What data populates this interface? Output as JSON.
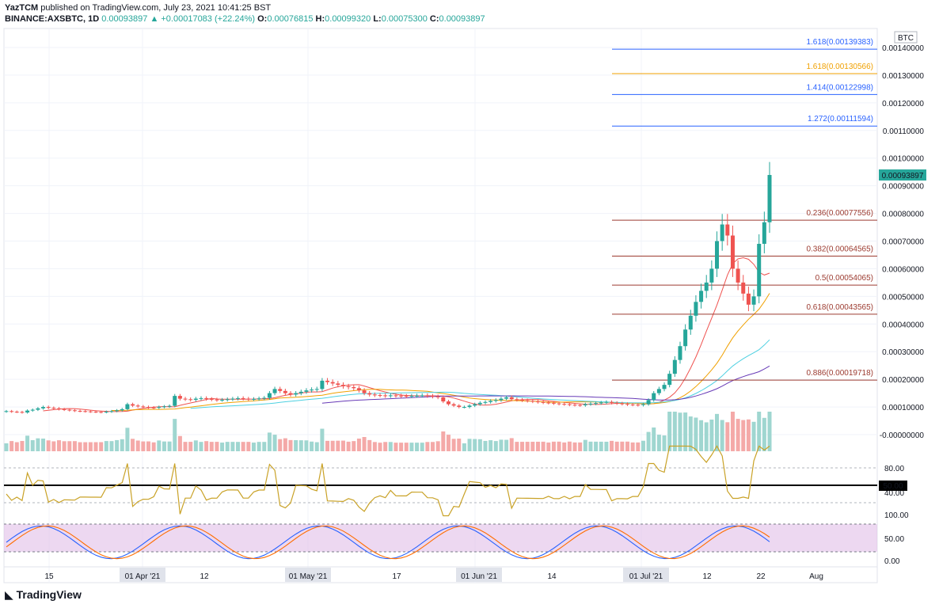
{
  "header": {
    "publisher": "YazTCM",
    "published_text": "published on TradingView.com, July 23, 2021 10:41:25 BST",
    "symbol": "BINANCE:AXSBTC, 1D",
    "last": "0.00093897",
    "change": "▲ +0.00017083 (+22.24%)",
    "o_label": "O:",
    "o": "0.00076815",
    "h_label": "H:",
    "h": "0.00099320",
    "l_label": "L:",
    "l": "0.00075300",
    "c_label": "C:",
    "c": "0.00093897"
  },
  "brand": "TradingView",
  "colors": {
    "up": "#26a69a",
    "down": "#ef5350",
    "fib": "#9c3b30",
    "accent": "#2962ff"
  },
  "chart_data": {
    "type": "candlestick",
    "currency_label": "BTC",
    "price_ylim": [
      -1e-05,
      0.00145
    ],
    "price_ticks": [
      "0.00140000",
      "0.00130000",
      "0.00120000",
      "0.00110000",
      "0.00100000",
      "0.00090000",
      "0.00080000",
      "0.00070000",
      "0.00060000",
      "0.00050000",
      "0.00040000",
      "0.00030000",
      "0.00020000",
      "0.00010000",
      "-0.00000000"
    ],
    "price_tick_values": [
      0.0014,
      0.0013,
      0.0012,
      0.0011,
      0.001,
      0.0009,
      0.0008,
      0.0007,
      0.0006,
      0.0005,
      0.0004,
      0.0003,
      0.0002,
      0.0001,
      0
    ],
    "last_price_label": "0.00093897",
    "last_price_value": 0.00093897,
    "x_labels": [
      "15",
      "01 Apr '21",
      "12",
      "01 May '21",
      "17",
      "01 Jun '21",
      "14",
      "01 Jul '21",
      "12",
      "22",
      "Aug"
    ],
    "fib_levels": [
      {
        "label": "1.618(0.00139383)",
        "value": 0.00139383,
        "color": "#2962ff"
      },
      {
        "label": "1.618(0.00130566)",
        "value": 0.00130566,
        "color": "#f0a000"
      },
      {
        "label": "1.414(0.00122998)",
        "value": 0.00122998,
        "color": "#2962ff"
      },
      {
        "label": "1.272(0.00111594)",
        "value": 0.00111594,
        "color": "#2962ff"
      },
      {
        "label": "0.236(0.00077556)",
        "value": 0.00077556,
        "color": "#9c3b30"
      },
      {
        "label": "0.382(0.00064565)",
        "value": 0.00064565,
        "color": "#9c3b30"
      },
      {
        "label": "0.5(0.00054065)",
        "value": 0.00054065,
        "color": "#9c3b30"
      },
      {
        "label": "0.618(0.00043565)",
        "value": 0.00043565,
        "color": "#9c3b30"
      },
      {
        "label": "0.886(0.00019718)",
        "value": 0.00019718,
        "color": "#9c3b30"
      }
    ],
    "closes": [
      8.5e-05,
      8.3e-05,
      8.2e-05,
      8e-05,
      8.7e-05,
      9e-05,
      9.5e-05,
      0.0001,
      9.7e-05,
      9.5e-05,
      9.2e-05,
      9e-05,
      8.8e-05,
      8.6e-05,
      8.5e-05,
      8.4e-05,
      8.3e-05,
      8.2e-05,
      8.1e-05,
      8.3e-05,
      8.5e-05,
      8.8e-05,
      9.2e-05,
      0.00011,
      0.000105,
      0.000102,
      0.0001,
      9.8e-05,
      9.7e-05,
      0.0001,
      0.000102,
      0.000104,
      0.00014,
      0.00013,
      0.000128,
      0.000126,
      0.00013,
      0.000132,
      0.000129,
      0.000127,
      0.000125,
      0.000126,
      0.000128,
      0.00013,
      0.000132,
      0.00013,
      0.000128,
      0.000129,
      0.000131,
      0.000133,
      0.00015,
      0.000165,
      0.000158,
      0.00015,
      0.000145,
      0.00015,
      0.000155,
      0.00016,
      0.000163,
      0.000165,
      0.000195,
      0.00019,
      0.000185,
      0.00018,
      0.000175,
      0.000172,
      0.000168,
      0.00016,
      0.00015,
      0.000145,
      0.000143,
      0.000142,
      0.00014,
      0.000142,
      0.000141,
      0.00014,
      0.000139,
      0.00014,
      0.000141,
      0.000142,
      0.00014,
      0.000138,
      0.000135,
      0.00012,
      0.00011,
      0.000105,
      0.0001,
      0.0001,
      0.000105,
      0.00011,
      0.000115,
      0.000118,
      0.000122,
      0.000125,
      0.00013,
      0.000135,
      0.000128,
      0.000126,
      0.000124,
      0.000122,
      0.00012,
      0.000118,
      0.000116,
      0.000115,
      0.000113,
      0.000111,
      0.00011,
      0.000108,
      0.000107,
      0.000106,
      0.00011,
      0.000112,
      0.000114,
      0.000116,
      0.000118,
      0.000115,
      0.000113,
      0.000111,
      0.000109,
      0.000108,
      0.000107,
      0.00011,
      0.000125,
      0.00015,
      0.000165,
      0.00018,
      0.00022,
      0.00027,
      0.00032,
      0.00038,
      0.00043,
      0.00048,
      0.00052,
      0.00055,
      0.0006,
      0.0007,
      0.00076,
      0.00072,
      0.0006,
      0.00055,
      0.00051,
      0.00047,
      0.0005,
      0.00069,
      0.000768,
      0.000939
    ],
    "ma_lines": [
      "#ef5350",
      "#f0a000",
      "#4dd0e1",
      "#673ab7"
    ],
    "rsi_ticks": [
      "80.00",
      "40.00"
    ],
    "rsi_marker": "50.00",
    "stoch_ticks": [
      "100.00",
      "50.00",
      "0.00"
    ]
  }
}
